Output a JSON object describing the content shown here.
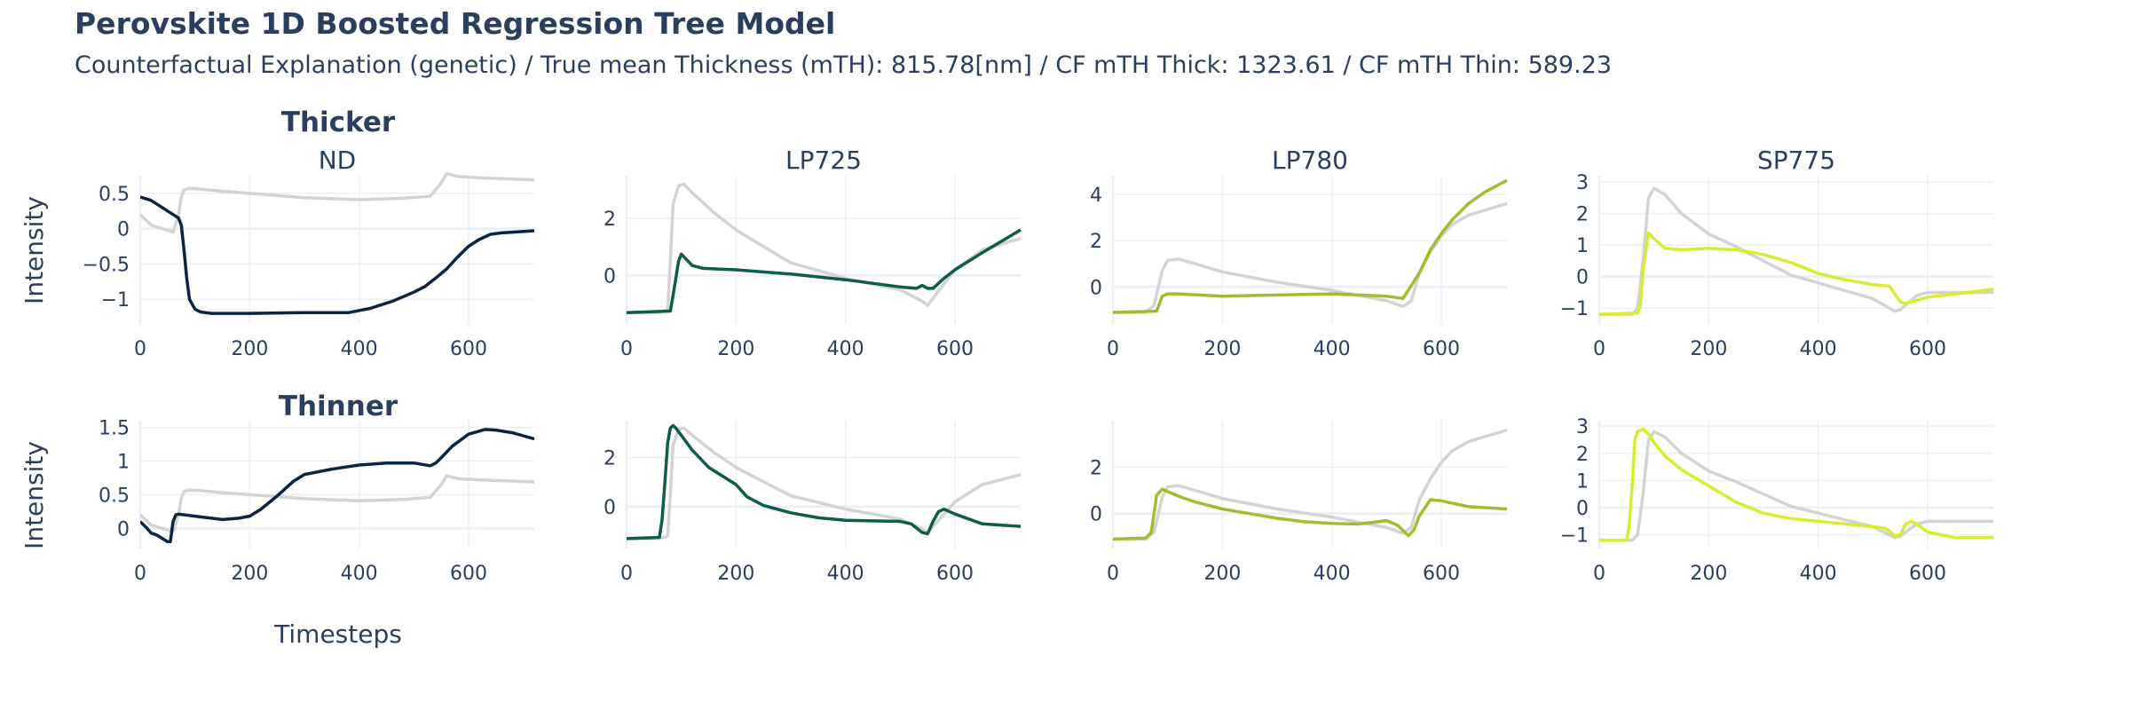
{
  "figure": {
    "title": "Perovskite 1D Boosted Regression Tree Model",
    "subtitle": "Counterfactual Explanation (genetic) / True mean Thickness (mTH): 815.78[nm] / CF mTH Thick: 1323.61 / CF mTH Thin: 589.23",
    "rows": [
      "Thicker",
      "Thinner"
    ],
    "ylabel": "Intensity",
    "xlabel": "Timesteps",
    "reference_color": "#d3d3d3"
  },
  "chart_data": [
    {
      "type": "line",
      "row": "Thicker",
      "title": "ND",
      "color": "#0b2540",
      "xlim": [
        0,
        720
      ],
      "ylim": [
        -1.35,
        0.75
      ],
      "xticks": [
        0,
        200,
        400,
        600
      ],
      "yticks": [
        -1,
        -0.5,
        0,
        0.5
      ],
      "yticklabels": [
        "−1",
        "−0.5",
        "0",
        "0.5"
      ],
      "series": [
        {
          "role": "reference",
          "x": [
            0,
            20,
            40,
            60,
            70,
            75,
            80,
            90,
            110,
            150,
            200,
            300,
            400,
            480,
            530,
            550,
            560,
            580,
            620,
            720
          ],
          "y": [
            0.2,
            0.05,
            0,
            -0.05,
            0.2,
            0.45,
            0.55,
            0.57,
            0.56,
            0.53,
            0.5,
            0.44,
            0.41,
            0.43,
            0.46,
            0.65,
            0.78,
            0.74,
            0.72,
            0.69
          ]
        },
        {
          "role": "counterfactual",
          "x": [
            0,
            20,
            40,
            60,
            70,
            75,
            80,
            85,
            90,
            100,
            110,
            130,
            200,
            300,
            380,
            420,
            460,
            500,
            520,
            540,
            560,
            580,
            600,
            620,
            640,
            660,
            680,
            720
          ],
          "y": [
            0.45,
            0.4,
            0.3,
            0.2,
            0.15,
            0.05,
            -0.3,
            -0.7,
            -1.0,
            -1.14,
            -1.18,
            -1.2,
            -1.2,
            -1.19,
            -1.19,
            -1.13,
            -1.03,
            -0.9,
            -0.82,
            -0.7,
            -0.57,
            -0.4,
            -0.25,
            -0.15,
            -0.08,
            -0.06,
            -0.05,
            -0.03
          ]
        }
      ]
    },
    {
      "type": "line",
      "row": "Thicker",
      "title": "LP725",
      "color": "#0d5c4c",
      "xlim": [
        0,
        720
      ],
      "ylim": [
        -1.7,
        3.5
      ],
      "xticks": [
        0,
        200,
        400,
        600
      ],
      "yticks": [
        0,
        2
      ],
      "yticklabels": [
        "0",
        "2"
      ],
      "series": [
        {
          "role": "reference",
          "x": [
            0,
            60,
            75,
            80,
            85,
            95,
            105,
            120,
            160,
            200,
            260,
            300,
            400,
            500,
            540,
            550,
            560,
            600,
            650,
            720
          ],
          "y": [
            -1.3,
            -1.3,
            -1.2,
            0.5,
            2.5,
            3.15,
            3.2,
            2.9,
            2.2,
            1.6,
            0.9,
            0.45,
            -0.1,
            -0.5,
            -0.9,
            -1.05,
            -0.8,
            0.2,
            0.9,
            1.3
          ]
        },
        {
          "role": "counterfactual",
          "x": [
            0,
            80,
            85,
            90,
            95,
            100,
            110,
            120,
            140,
            200,
            300,
            400,
            500,
            530,
            540,
            550,
            560,
            580,
            600,
            650,
            720
          ],
          "y": [
            -1.3,
            -1.25,
            -0.7,
            -0.1,
            0.5,
            0.75,
            0.55,
            0.35,
            0.25,
            0.2,
            0.05,
            -0.15,
            -0.4,
            -0.45,
            -0.35,
            -0.45,
            -0.45,
            -0.1,
            0.2,
            0.8,
            1.6
          ]
        }
      ]
    },
    {
      "type": "line",
      "row": "Thicker",
      "title": "LP780",
      "color": "#a2bd2f",
      "xlim": [
        0,
        720
      ],
      "ylim": [
        -1.6,
        4.8
      ],
      "xticks": [
        0,
        200,
        400,
        600
      ],
      "yticks": [
        0,
        2,
        4
      ],
      "yticklabels": [
        "0",
        "2",
        "4"
      ],
      "series": [
        {
          "role": "reference",
          "x": [
            0,
            60,
            75,
            90,
            100,
            120,
            150,
            200,
            300,
            400,
            500,
            530,
            545,
            560,
            580,
            600,
            620,
            650,
            720
          ],
          "y": [
            -1.1,
            -1.1,
            -0.8,
            0.7,
            1.15,
            1.2,
            1.0,
            0.65,
            0.2,
            -0.15,
            -0.6,
            -0.85,
            -0.6,
            0.6,
            1.5,
            2.2,
            2.7,
            3.1,
            3.6
          ]
        },
        {
          "role": "counterfactual",
          "x": [
            0,
            80,
            90,
            100,
            120,
            200,
            300,
            400,
            500,
            530,
            560,
            580,
            600,
            620,
            650,
            680,
            720
          ],
          "y": [
            -1.1,
            -1.05,
            -0.4,
            -0.3,
            -0.3,
            -0.4,
            -0.35,
            -0.3,
            -0.4,
            -0.5,
            0.6,
            1.6,
            2.3,
            2.9,
            3.6,
            4.1,
            4.6
          ]
        }
      ]
    },
    {
      "type": "line",
      "row": "Thicker",
      "title": "SP775",
      "color": "#d9ec2e",
      "xlim": [
        0,
        720
      ],
      "ylim": [
        -1.5,
        3.2
      ],
      "xticks": [
        0,
        200,
        400,
        600
      ],
      "yticks": [
        -1,
        0,
        1,
        2,
        3
      ],
      "yticklabels": [
        "−1",
        "0",
        "1",
        "2",
        "3"
      ],
      "series": [
        {
          "role": "reference",
          "x": [
            0,
            60,
            70,
            80,
            90,
            100,
            120,
            150,
            200,
            250,
            300,
            350,
            400,
            450,
            500,
            530,
            540,
            550,
            560,
            580,
            600,
            650,
            720
          ],
          "y": [
            -1.2,
            -1.2,
            -1.0,
            0.5,
            2.5,
            2.8,
            2.6,
            2.0,
            1.35,
            0.95,
            0.5,
            0.05,
            -0.2,
            -0.45,
            -0.7,
            -1.0,
            -1.1,
            -1.05,
            -0.9,
            -0.6,
            -0.5,
            -0.5,
            -0.5
          ]
        },
        {
          "role": "counterfactual",
          "x": [
            0,
            70,
            75,
            80,
            90,
            100,
            120,
            150,
            200,
            250,
            300,
            350,
            400,
            450,
            500,
            530,
            540,
            550,
            560,
            580,
            600,
            650,
            720
          ],
          "y": [
            -1.2,
            -1.15,
            -0.9,
            0.2,
            1.4,
            1.2,
            0.9,
            0.85,
            0.9,
            0.85,
            0.7,
            0.45,
            0.1,
            -0.1,
            -0.25,
            -0.3,
            -0.55,
            -0.8,
            -0.85,
            -0.75,
            -0.65,
            -0.55,
            -0.4
          ]
        }
      ]
    },
    {
      "type": "line",
      "row": "Thinner",
      "title": "",
      "color": "#0b2540",
      "xlim": [
        0,
        720
      ],
      "ylim": [
        -0.3,
        1.6
      ],
      "xticks": [
        0,
        200,
        400,
        600
      ],
      "yticks": [
        0,
        0.5,
        1,
        1.5
      ],
      "yticklabels": [
        "0",
        "0.5",
        "1",
        "1.5"
      ],
      "series": [
        {
          "role": "reference",
          "x": [
            0,
            20,
            40,
            60,
            70,
            75,
            80,
            90,
            110,
            150,
            200,
            300,
            400,
            480,
            530,
            550,
            560,
            580,
            620,
            720
          ],
          "y": [
            0.2,
            0.05,
            0,
            -0.05,
            0.2,
            0.45,
            0.55,
            0.57,
            0.56,
            0.53,
            0.5,
            0.44,
            0.41,
            0.43,
            0.46,
            0.65,
            0.78,
            0.74,
            0.72,
            0.69
          ]
        },
        {
          "role": "counterfactual",
          "x": [
            0,
            10,
            20,
            30,
            40,
            50,
            55,
            60,
            65,
            70,
            100,
            150,
            180,
            200,
            220,
            250,
            280,
            300,
            350,
            400,
            450,
            500,
            530,
            540,
            550,
            570,
            600,
            630,
            650,
            680,
            720
          ],
          "y": [
            0.1,
            0.02,
            -0.07,
            -0.1,
            -0.15,
            -0.2,
            -0.2,
            0.1,
            0.2,
            0.21,
            0.18,
            0.13,
            0.15,
            0.18,
            0.28,
            0.48,
            0.7,
            0.8,
            0.88,
            0.94,
            0.97,
            0.97,
            0.93,
            0.97,
            1.05,
            1.22,
            1.4,
            1.47,
            1.46,
            1.42,
            1.33
          ]
        }
      ]
    },
    {
      "type": "line",
      "row": "Thinner",
      "title": "",
      "color": "#0d5c4c",
      "xlim": [
        0,
        720
      ],
      "ylim": [
        -1.7,
        3.5
      ],
      "xticks": [
        0,
        200,
        400,
        600
      ],
      "yticks": [
        0,
        2
      ],
      "yticklabels": [
        "0",
        "2"
      ],
      "series": [
        {
          "role": "reference",
          "x": [
            0,
            60,
            75,
            80,
            85,
            95,
            105,
            120,
            160,
            200,
            260,
            300,
            400,
            500,
            540,
            550,
            560,
            600,
            650,
            720
          ],
          "y": [
            -1.3,
            -1.3,
            -1.2,
            0.5,
            2.5,
            3.15,
            3.2,
            2.9,
            2.2,
            1.6,
            0.9,
            0.45,
            -0.1,
            -0.5,
            -0.9,
            -1.05,
            -0.8,
            0.2,
            0.9,
            1.3
          ]
        },
        {
          "role": "counterfactual",
          "x": [
            0,
            60,
            65,
            70,
            75,
            80,
            85,
            90,
            100,
            120,
            150,
            200,
            220,
            250,
            300,
            350,
            400,
            500,
            520,
            540,
            550,
            560,
            570,
            580,
            600,
            650,
            720
          ],
          "y": [
            -1.3,
            -1.25,
            -0.5,
            1.0,
            2.6,
            3.2,
            3.3,
            3.2,
            2.9,
            2.3,
            1.6,
            0.9,
            0.4,
            0.05,
            -0.25,
            -0.45,
            -0.55,
            -0.6,
            -0.7,
            -1.05,
            -1.1,
            -0.6,
            -0.2,
            -0.1,
            -0.3,
            -0.7,
            -0.8
          ]
        }
      ]
    },
    {
      "type": "line",
      "row": "Thinner",
      "title": "",
      "color": "#a2bd2f",
      "xlim": [
        0,
        720
      ],
      "ylim": [
        -1.5,
        4.0
      ],
      "xticks": [
        0,
        200,
        400,
        600
      ],
      "yticks": [
        0,
        2
      ],
      "yticklabels": [
        "0",
        "2"
      ],
      "series": [
        {
          "role": "reference",
          "x": [
            0,
            60,
            75,
            90,
            100,
            120,
            150,
            200,
            300,
            400,
            500,
            530,
            545,
            560,
            580,
            600,
            620,
            650,
            720
          ],
          "y": [
            -1.1,
            -1.1,
            -0.8,
            0.7,
            1.15,
            1.2,
            1.0,
            0.65,
            0.2,
            -0.15,
            -0.6,
            -0.85,
            -0.6,
            0.6,
            1.5,
            2.2,
            2.7,
            3.1,
            3.6
          ]
        },
        {
          "role": "counterfactual",
          "x": [
            0,
            60,
            70,
            80,
            90,
            100,
            120,
            150,
            200,
            250,
            300,
            350,
            400,
            450,
            500,
            520,
            540,
            550,
            560,
            580,
            600,
            650,
            720
          ],
          "y": [
            -1.1,
            -1.05,
            -0.8,
            0.8,
            1.05,
            0.95,
            0.75,
            0.5,
            0.2,
            0.0,
            -0.2,
            -0.35,
            -0.42,
            -0.45,
            -0.3,
            -0.5,
            -0.95,
            -0.7,
            -0.1,
            0.6,
            0.55,
            0.3,
            0.2
          ]
        }
      ]
    },
    {
      "type": "line",
      "row": "Thinner",
      "title": "",
      "color": "#d9ec2e",
      "xlim": [
        0,
        720
      ],
      "ylim": [
        -1.5,
        3.2
      ],
      "xticks": [
        0,
        200,
        400,
        600
      ],
      "yticks": [
        -1,
        0,
        1,
        2,
        3
      ],
      "yticklabels": [
        "−1",
        "0",
        "1",
        "2",
        "3"
      ],
      "series": [
        {
          "role": "reference",
          "x": [
            0,
            60,
            70,
            80,
            90,
            100,
            120,
            150,
            200,
            250,
            300,
            350,
            400,
            450,
            500,
            530,
            540,
            550,
            560,
            580,
            600,
            650,
            720
          ],
          "y": [
            -1.2,
            -1.2,
            -1.0,
            0.5,
            2.5,
            2.8,
            2.6,
            2.0,
            1.35,
            0.95,
            0.5,
            0.05,
            -0.2,
            -0.45,
            -0.7,
            -1.0,
            -1.1,
            -1.05,
            -0.9,
            -0.6,
            -0.5,
            -0.5,
            -0.5
          ]
        },
        {
          "role": "counterfactual",
          "x": [
            0,
            50,
            55,
            60,
            65,
            70,
            80,
            90,
            100,
            120,
            150,
            200,
            250,
            300,
            350,
            400,
            450,
            500,
            520,
            530,
            540,
            550,
            560,
            570,
            580,
            600,
            650,
            720
          ],
          "y": [
            -1.2,
            -1.2,
            -0.6,
            0.8,
            2.5,
            2.8,
            2.9,
            2.7,
            2.4,
            1.9,
            1.4,
            0.8,
            0.2,
            -0.2,
            -0.4,
            -0.5,
            -0.6,
            -0.7,
            -0.75,
            -0.85,
            -1.05,
            -1.0,
            -0.6,
            -0.5,
            -0.6,
            -0.9,
            -1.1,
            -1.1
          ]
        }
      ]
    }
  ]
}
